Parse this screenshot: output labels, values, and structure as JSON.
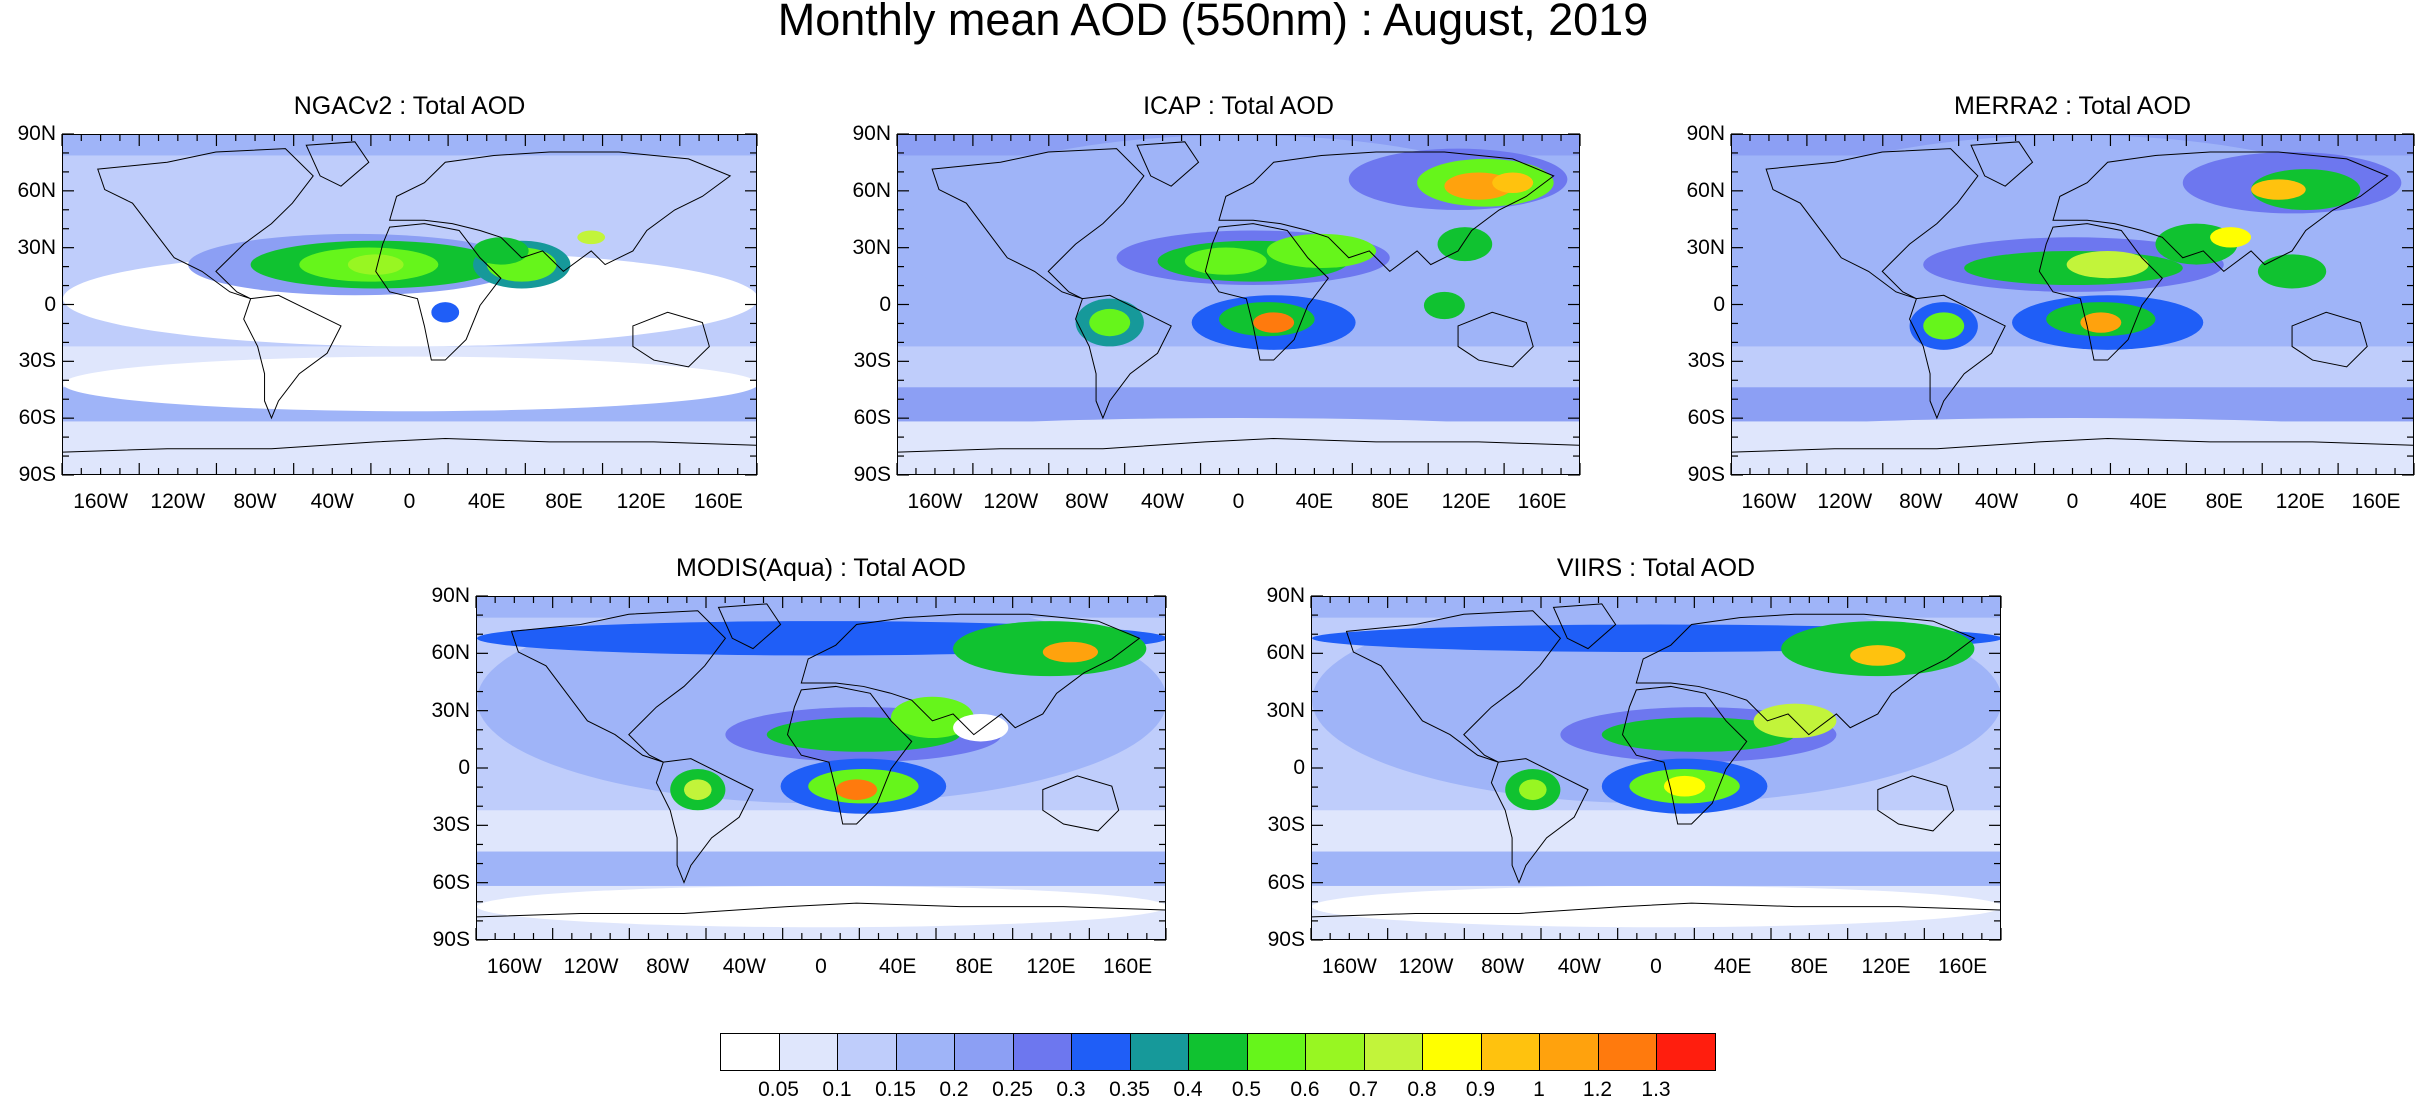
{
  "title": "Monthly mean AOD (550nm) : August, 2019",
  "panels": [
    {
      "title": "NGACv2 : Total AOD",
      "id": "ngacv2"
    },
    {
      "title": "ICAP : Total AOD",
      "id": "icap"
    },
    {
      "title": "MERRA2 : Total AOD",
      "id": "merra2"
    },
    {
      "title": "MODIS(Aqua) : Total AOD",
      "id": "modis"
    },
    {
      "title": "VIIRS : Total AOD",
      "id": "viirs"
    }
  ],
  "lat_labels": [
    "90N",
    "60N",
    "30N",
    "0",
    "30S",
    "60S",
    "90S"
  ],
  "lon_labels": [
    "160W",
    "120W",
    "80W",
    "40W",
    "0",
    "40E",
    "80E",
    "120E",
    "160E"
  ],
  "colorbar": {
    "labels": [
      "0.05",
      "0.1",
      "0.15",
      "0.2",
      "0.25",
      "0.3",
      "0.35",
      "0.4",
      "0.5",
      "0.6",
      "0.7",
      "0.8",
      "0.9",
      "1",
      "1.2",
      "1.3"
    ],
    "colors": [
      "#ffffff",
      "#dfe6fc",
      "#bfcdfb",
      "#9fb4f8",
      "#8c9ff4",
      "#6d77ef",
      "#1f5ef7",
      "#16999a",
      "#10c230",
      "#66f51b",
      "#98f622",
      "#c2f43a",
      "#ffff00",
      "#ffc20e",
      "#ffa20d",
      "#ff7a0d",
      "#ff1e0e"
    ]
  }
}
